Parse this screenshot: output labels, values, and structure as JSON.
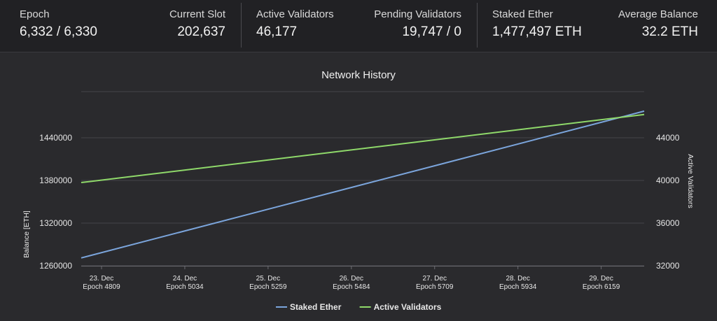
{
  "stats": {
    "epoch": {
      "label": "Epoch",
      "value": "6,332 / 6,330"
    },
    "slot": {
      "label": "Current Slot",
      "value": "202,637"
    },
    "active": {
      "label": "Active Validators",
      "value": "46,177"
    },
    "pending": {
      "label": "Pending Validators",
      "value": "19,747 / 0"
    },
    "staked": {
      "label": "Staked Ether",
      "value": "1,477,497 ETH"
    },
    "average": {
      "label": "Average Balance",
      "value": "32.2 ETH"
    }
  },
  "colors": {
    "staked_ether": "#7ba5dc",
    "active_validators": "#8fd96a",
    "grid": "#444449"
  },
  "chart_data": {
    "type": "line",
    "title": "Network History",
    "x_ticks": [
      {
        "date": "23. Dec",
        "epoch": "Epoch 4809"
      },
      {
        "date": "24. Dec",
        "epoch": "Epoch 5034"
      },
      {
        "date": "25. Dec",
        "epoch": "Epoch 5259"
      },
      {
        "date": "26. Dec",
        "epoch": "Epoch 5484"
      },
      {
        "date": "27. Dec",
        "epoch": "Epoch 5709"
      },
      {
        "date": "28. Dec",
        "epoch": "Epoch 5934"
      },
      {
        "date": "29. Dec",
        "epoch": "Epoch 6159"
      }
    ],
    "x_range": [
      4809,
      6330
    ],
    "y_left": {
      "label": "Balance [ETH]",
      "ticks": [
        1260000,
        1320000,
        1380000,
        1440000
      ],
      "range": [
        1260000,
        1440000
      ]
    },
    "y_right": {
      "label": "Active Validators",
      "ticks": [
        32000,
        36000,
        40000,
        44000
      ],
      "range": [
        32000,
        44000
      ]
    },
    "series": [
      {
        "name": "Staked Ether",
        "axis": "left",
        "x": [
          4809,
          6330
        ],
        "values": [
          1271000,
          1477497
        ]
      },
      {
        "name": "Active Validators",
        "axis": "right",
        "x": [
          4809,
          6330
        ],
        "values": [
          39800,
          46177
        ]
      }
    ],
    "legend": "bottom-center",
    "grid": true
  }
}
